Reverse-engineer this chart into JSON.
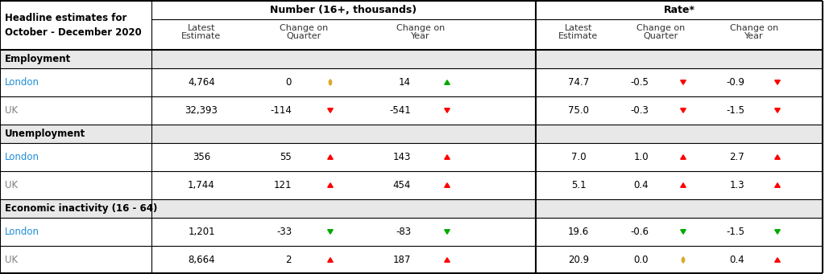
{
  "title_line1": "Headline estimates for",
  "title_line2": "October - December 2020",
  "col_group1": "Number (16+, thousands)",
  "col_group2": "Rate*",
  "sections": [
    {
      "header": "Employment",
      "rows": [
        {
          "label": "London",
          "london": true,
          "num_latest": "4,764",
          "num_chg_q": "0",
          "num_chg_q_arrow": "yellow_updown",
          "num_chg_y": "14",
          "num_chg_y_arrow": "green_up",
          "rate_latest": "74.7",
          "rate_chg_q": "-0.5",
          "rate_chg_q_arrow": "red_down",
          "rate_chg_y": "-0.9",
          "rate_chg_y_arrow": "red_down"
        },
        {
          "label": "UK",
          "london": false,
          "num_latest": "32,393",
          "num_chg_q": "-114",
          "num_chg_q_arrow": "red_down",
          "num_chg_y": "-541",
          "num_chg_y_arrow": "red_down",
          "rate_latest": "75.0",
          "rate_chg_q": "-0.3",
          "rate_chg_q_arrow": "red_down",
          "rate_chg_y": "-1.5",
          "rate_chg_y_arrow": "red_down"
        }
      ]
    },
    {
      "header": "Unemployment",
      "rows": [
        {
          "label": "London",
          "london": true,
          "num_latest": "356",
          "num_chg_q": "55",
          "num_chg_q_arrow": "red_up",
          "num_chg_y": "143",
          "num_chg_y_arrow": "red_up",
          "rate_latest": "7.0",
          "rate_chg_q": "1.0",
          "rate_chg_q_arrow": "red_up",
          "rate_chg_y": "2.7",
          "rate_chg_y_arrow": "red_up"
        },
        {
          "label": "UK",
          "london": false,
          "num_latest": "1,744",
          "num_chg_q": "121",
          "num_chg_q_arrow": "red_up",
          "num_chg_y": "454",
          "num_chg_y_arrow": "red_up",
          "rate_latest": "5.1",
          "rate_chg_q": "0.4",
          "rate_chg_q_arrow": "red_up",
          "rate_chg_y": "1.3",
          "rate_chg_y_arrow": "red_up"
        }
      ]
    },
    {
      "header": "Economic inactivity (16 - 64)",
      "rows": [
        {
          "label": "London",
          "london": true,
          "num_latest": "1,201",
          "num_chg_q": "-33",
          "num_chg_q_arrow": "green_down",
          "num_chg_y": "-83",
          "num_chg_y_arrow": "green_down",
          "rate_latest": "19.6",
          "rate_chg_q": "-0.6",
          "rate_chg_q_arrow": "green_down",
          "rate_chg_y": "-1.5",
          "rate_chg_y_arrow": "green_down"
        },
        {
          "label": "UK",
          "london": false,
          "num_latest": "8,664",
          "num_chg_q": "2",
          "num_chg_q_arrow": "red_up",
          "num_chg_y": "187",
          "num_chg_y_arrow": "red_up",
          "rate_latest": "20.9",
          "rate_chg_q": "0.0",
          "rate_chg_q_arrow": "yellow_updown",
          "rate_chg_y": "0.4",
          "rate_chg_y_arrow": "red_up"
        }
      ]
    }
  ],
  "london_color": "#1F8DD6",
  "uk_color": "#808080",
  "bg_color": "#FFFFFF",
  "section_bg": "#E8E8E8",
  "border_color": "#000000",
  "arrow_colors": {
    "red_up": "#FF0000",
    "red_down": "#FF0000",
    "green_up": "#00AA00",
    "green_down": "#00AA00",
    "yellow_updown": "#DAA520"
  }
}
